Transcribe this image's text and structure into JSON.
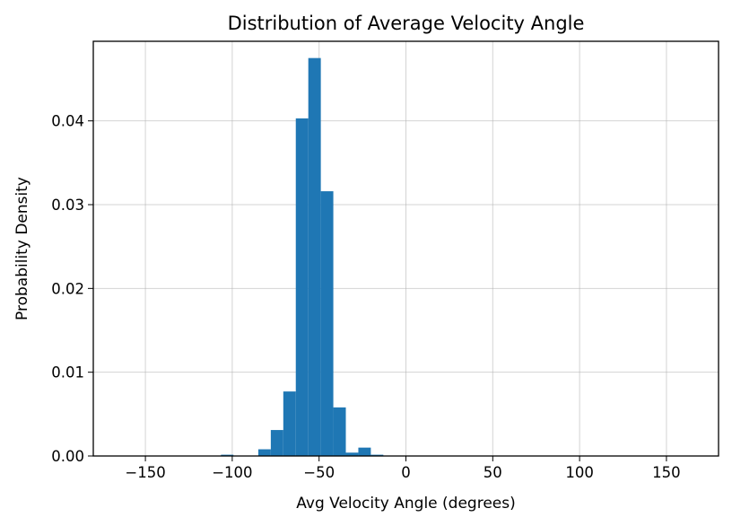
{
  "chart_data": {
    "type": "bar",
    "title": "Distribution of Average Velocity Angle",
    "xlabel": "Avg Velocity Angle (degrees)",
    "ylabel": "Probability Density",
    "xlim": [
      -180,
      180
    ],
    "ylim": [
      0,
      0.0495
    ],
    "grid": true,
    "bar_color": "#1f77b4",
    "x_ticks": [
      -150,
      -100,
      -50,
      0,
      50,
      100,
      150
    ],
    "x_tick_labels": [
      "−150",
      "−100",
      "−50",
      "0",
      "50",
      "100",
      "150"
    ],
    "y_ticks": [
      0.0,
      0.01,
      0.02,
      0.03,
      0.04
    ],
    "y_tick_labels": [
      "0.00",
      "0.01",
      "0.02",
      "0.03",
      "0.04"
    ],
    "bins": [
      {
        "x0": -106.5,
        "x1": -99.3,
        "value": 0.00015
      },
      {
        "x0": -85.0,
        "x1": -77.8,
        "value": 0.0008
      },
      {
        "x0": -77.8,
        "x1": -70.6,
        "value": 0.0031
      },
      {
        "x0": -70.6,
        "x1": -63.4,
        "value": 0.0077
      },
      {
        "x0": -63.4,
        "x1": -56.2,
        "value": 0.0403
      },
      {
        "x0": -56.2,
        "x1": -49.0,
        "value": 0.0475
      },
      {
        "x0": -49.0,
        "x1": -41.8,
        "value": 0.0316
      },
      {
        "x0": -41.8,
        "x1": -34.6,
        "value": 0.0058
      },
      {
        "x0": -34.6,
        "x1": -27.4,
        "value": 0.0004
      },
      {
        "x0": -27.4,
        "x1": -20.2,
        "value": 0.001
      },
      {
        "x0": -20.2,
        "x1": -13.0,
        "value": 0.00015
      }
    ]
  }
}
